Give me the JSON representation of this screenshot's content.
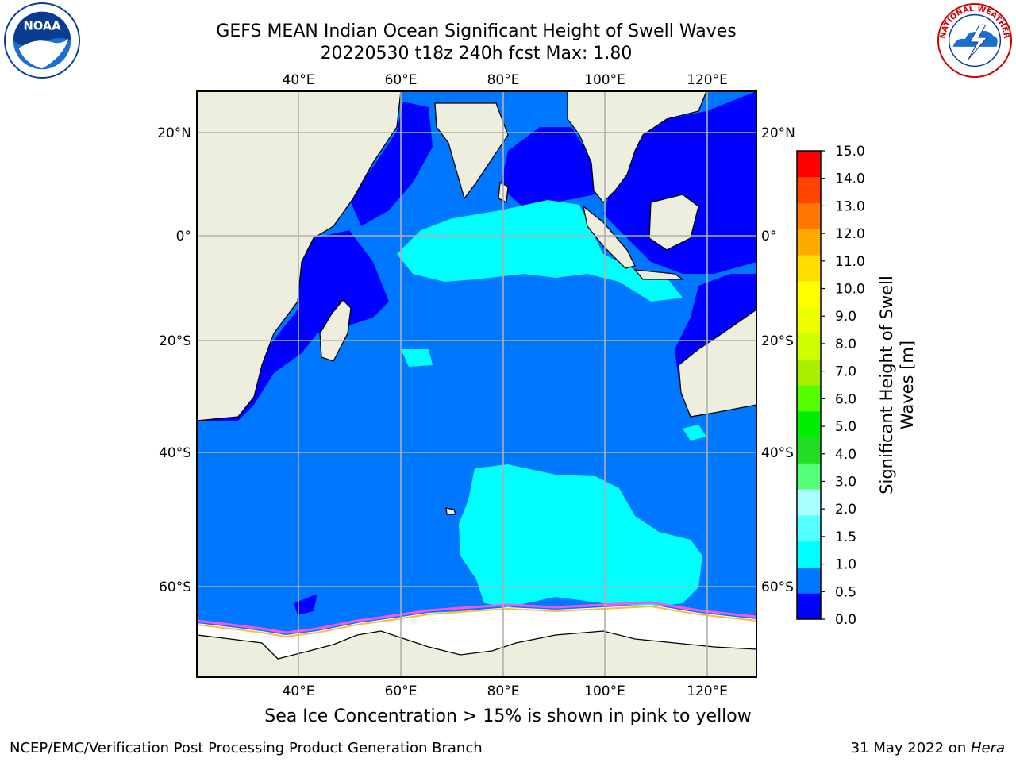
{
  "title_line1": "GEFS MEAN Indian Ocean Significant Height of Swell Waves",
  "title_line2": "20220530 t18z 240h fcst   Max: 1.80",
  "ice_note": "Sea Ice Concentration > 15% is shown in pink to yellow",
  "footer_left": "NCEP/EMC/Verification Post Processing Product Generation Branch",
  "footer_right_date": "31 May 2022 on ",
  "footer_right_host": "Hera",
  "logos": {
    "left": "NOAA",
    "right": "NATIONAL WEATHER SERVICE"
  },
  "map": {
    "lon_labels": [
      "40°E",
      "60°E",
      "80°E",
      "100°E",
      "120°E"
    ],
    "lat_labels_left": [
      "20°N",
      "0°",
      "20°S",
      "40°S",
      "60°S"
    ],
    "lat_labels_right": [
      "20°N",
      "0°",
      "20°S",
      "40°S",
      "60°S"
    ],
    "colors": {
      "land": "#eeeedf",
      "ocean_main": "#0077ff",
      "ocean_low": "#0000ff",
      "swell_high": "#00ffff",
      "sea_ice": "#ffffff",
      "grid": "#b0b0b0"
    }
  },
  "colorbar": {
    "title": "Significant Height of Swell Waves [m]",
    "ticks": [
      "15.0",
      "14.0",
      "13.0",
      "12.0",
      "11.0",
      "10.0",
      "9.0",
      "8.0",
      "7.0",
      "6.0",
      "5.0",
      "4.0",
      "3.0",
      "2.0",
      "1.5",
      "1.0",
      "0.5",
      "0.0"
    ],
    "colors_bottom_to_top": [
      "#0000ff",
      "#0077ff",
      "#00ffff",
      "#55ffff",
      "#aaffff",
      "#55ff77",
      "#22dd22",
      "#00ee00",
      "#55ff00",
      "#aaee00",
      "#ccff00",
      "#eeff00",
      "#ffff00",
      "#ffdd00",
      "#ffaa00",
      "#ff7700",
      "#ff4400",
      "#ff0000"
    ]
  }
}
